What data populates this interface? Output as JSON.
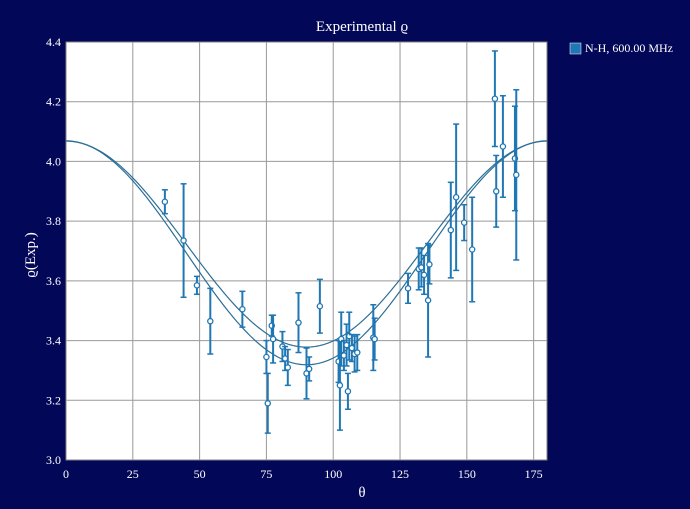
{
  "chart_data": {
    "type": "scatter",
    "title": "Experimental ϱ",
    "xlabel": "θ",
    "ylabel": "ϱ(Exp.)",
    "xlim": [
      0,
      180
    ],
    "ylim": [
      3.0,
      4.4
    ],
    "xticks": [
      0,
      25,
      50,
      75,
      100,
      125,
      150,
      175
    ],
    "yticks": [
      3.0,
      3.2,
      3.4,
      3.6,
      3.8,
      4.0,
      4.2,
      4.4
    ],
    "grid": true,
    "legend_position": "top-right",
    "colors": {
      "background": "#030757",
      "plot": "#ffffff",
      "series": "#1f77b4",
      "grid": "#999999"
    },
    "series": [
      {
        "name": "N-H, 600.00 MHz",
        "x": [
          37,
          44,
          49,
          54,
          66,
          75,
          75.5,
          77,
          77.5,
          81,
          82,
          83,
          87,
          90,
          91,
          95,
          102,
          102.5,
          103,
          104,
          105,
          105.5,
          106,
          107,
          108,
          109,
          115,
          115.5,
          128,
          132,
          133,
          134,
          135.5,
          136,
          144,
          146,
          149,
          152,
          160.5,
          161,
          163.5,
          168,
          168.5
        ],
        "y": [
          3.865,
          3.735,
          3.585,
          3.465,
          3.505,
          3.345,
          3.19,
          3.45,
          3.405,
          3.38,
          3.34,
          3.31,
          3.46,
          3.29,
          3.305,
          3.515,
          3.33,
          3.25,
          3.405,
          3.35,
          3.385,
          3.23,
          3.415,
          3.375,
          3.355,
          3.36,
          3.41,
          3.405,
          3.575,
          3.64,
          3.645,
          3.62,
          3.535,
          3.655,
          3.77,
          3.88,
          3.795,
          3.705,
          4.21,
          3.9,
          4.05,
          4.01,
          3.955
        ],
        "err": [
          0.04,
          0.19,
          0.03,
          0.11,
          0.06,
          0.055,
          0.1,
          0.035,
          0.08,
          0.05,
          0.04,
          0.06,
          0.1,
          0.085,
          0.04,
          0.09,
          0.07,
          0.15,
          0.09,
          0.05,
          0.07,
          0.06,
          0.08,
          0.045,
          0.06,
          0.06,
          0.11,
          0.07,
          0.05,
          0.07,
          0.065,
          0.065,
          0.19,
          0.065,
          0.16,
          0.245,
          0.06,
          0.175,
          0.16,
          0.12,
          0.17,
          0.175,
          0.285
        ]
      }
    ],
    "fit_curves": [
      {
        "amplitude": 0.345,
        "offset": 3.723,
        "phase_deg": 0
      },
      {
        "amplitude": 0.375,
        "offset": 3.694,
        "phase_deg": 0
      }
    ]
  }
}
